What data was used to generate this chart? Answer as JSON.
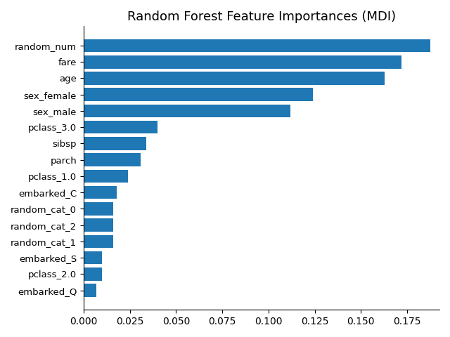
{
  "title": "Random Forest Feature Importances (MDI)",
  "features": [
    "random_num",
    "fare",
    "age",
    "sex_female",
    "sex_male",
    "pclass_3.0",
    "sibsp",
    "parch",
    "pclass_1.0",
    "embarked_C",
    "random_cat_0",
    "random_cat_2",
    "random_cat_1",
    "embarked_S",
    "pclass_2.0",
    "embarked_Q"
  ],
  "importances": [
    0.1875,
    0.172,
    0.163,
    0.124,
    0.112,
    0.04,
    0.034,
    0.031,
    0.024,
    0.018,
    0.016,
    0.016,
    0.016,
    0.01,
    0.01,
    0.007
  ],
  "bar_color": "#1f77b4",
  "xlim_min": 0.0,
  "xlim_max": 0.1925,
  "xticks": [
    0.0,
    0.025,
    0.05,
    0.075,
    0.1,
    0.125,
    0.15,
    0.175
  ],
  "title_fontsize": 13,
  "tick_fontsize": 9.5,
  "bar_height": 0.8
}
